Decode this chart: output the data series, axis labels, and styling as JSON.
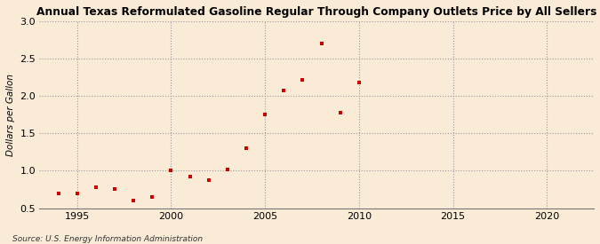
{
  "title": "Annual Texas Reformulated Gasoline Regular Through Company Outlets Price by All Sellers",
  "ylabel": "Dollars per Gallon",
  "source": "Source: U.S. Energy Information Administration",
  "background_color": "#faebd7",
  "marker_color": "#cc0000",
  "xlim": [
    1993.0,
    2022.5
  ],
  "ylim": [
    0.5,
    3.0
  ],
  "xticks": [
    1995,
    2000,
    2005,
    2010,
    2015,
    2020
  ],
  "yticks": [
    0.5,
    1.0,
    1.5,
    2.0,
    2.5,
    3.0
  ],
  "years": [
    1994,
    1995,
    1996,
    1997,
    1998,
    1999,
    2000,
    2001,
    2002,
    2003,
    2004,
    2005,
    2006,
    2007,
    2008,
    2009,
    2010
  ],
  "values": [
    0.7,
    0.7,
    0.78,
    0.76,
    0.6,
    0.65,
    1.0,
    0.92,
    0.87,
    1.02,
    1.3,
    1.75,
    2.07,
    2.22,
    2.7,
    1.78,
    2.18
  ]
}
